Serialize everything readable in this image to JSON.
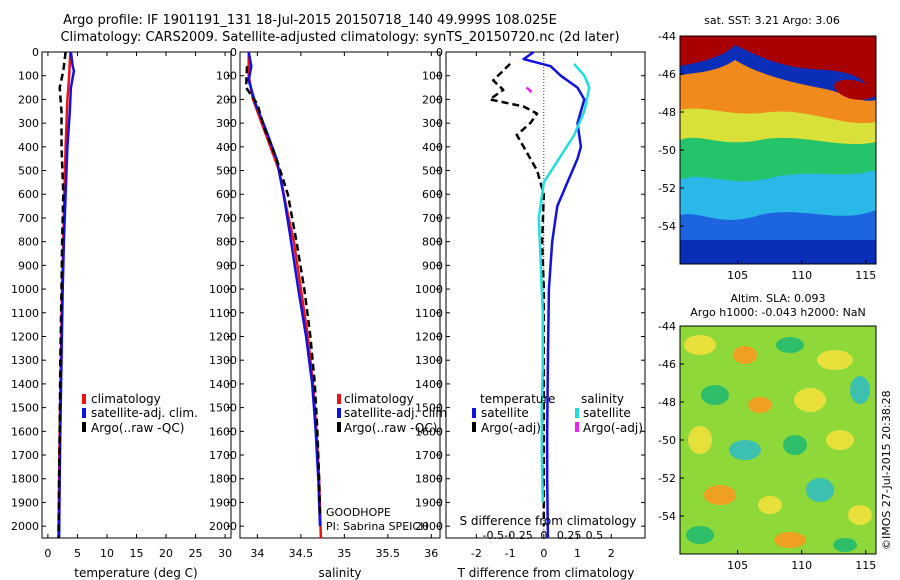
{
  "header": {
    "title_line1": "Argo profile: IF 1901191_131 18-Jul-2015 20150718_140 49.999S 108.025E",
    "title_line2": "Climatology: CARS2009. Satellite-adjusted climatology: synTS_20150720.nc (2d later)"
  },
  "colors": {
    "climatology": "#ee1111",
    "satellite": "#1111dd",
    "argo": "#000000",
    "satellite_s": "#22dddd",
    "argo_s": "#ee22ee"
  },
  "chart_data": [
    {
      "type": "line",
      "name": "temperature-panel",
      "xlabel": "temperature (deg C)",
      "xlim": [
        -1,
        31
      ],
      "xticks": [
        0,
        5,
        10,
        15,
        20,
        25,
        30
      ],
      "xtick_labels": [
        "0",
        "5",
        "10",
        "15",
        "20",
        "25",
        "30"
      ],
      "ylim": [
        0,
        2050
      ],
      "yticks": [
        0,
        100,
        200,
        300,
        400,
        500,
        600,
        700,
        800,
        900,
        1000,
        1100,
        1200,
        1300,
        1400,
        1500,
        1600,
        1700,
        1800,
        1900,
        2000
      ],
      "ytick_labels": [
        "0",
        "100",
        "200",
        "300",
        "400",
        "500",
        "600",
        "700",
        "800",
        "900",
        "1000",
        "1100",
        "1200",
        "1300",
        "1400",
        "1500",
        "1600",
        "1700",
        "1800",
        "1900",
        "2000"
      ],
      "legend": [
        "climatology",
        "satellite-adj. clim.",
        "Argo(..raw -QC)"
      ],
      "series": [
        {
          "name": "climatology",
          "style": "solid",
          "color_key": "climatology",
          "points": [
            [
              3.8,
              0
            ],
            [
              3.6,
              100
            ],
            [
              3.3,
              200
            ],
            [
              3.0,
              400
            ],
            [
              2.8,
              600
            ],
            [
              2.6,
              800
            ],
            [
              2.4,
              1000
            ],
            [
              2.2,
              1300
            ],
            [
              2.0,
              1600
            ],
            [
              1.9,
              1800
            ],
            [
              1.8,
              2050
            ]
          ]
        },
        {
          "name": "satellite-adj. clim.",
          "style": "solid",
          "color_key": "satellite",
          "points": [
            [
              3.9,
              0
            ],
            [
              4.2,
              60
            ],
            [
              4.4,
              80
            ],
            [
              3.9,
              150
            ],
            [
              3.7,
              250
            ],
            [
              3.3,
              400
            ],
            [
              3.0,
              600
            ],
            [
              2.7,
              800
            ],
            [
              2.5,
              1000
            ],
            [
              2.3,
              1300
            ],
            [
              2.1,
              1600
            ],
            [
              2.0,
              1800
            ],
            [
              1.9,
              2050
            ]
          ]
        },
        {
          "name": "Argo(..raw -QC)",
          "style": "dashed",
          "color_key": "argo",
          "points": [
            [
              3.0,
              0
            ],
            [
              2.6,
              80
            ],
            [
              2.0,
              150
            ],
            [
              2.3,
              250
            ],
            [
              2.3,
              400
            ],
            [
              2.6,
              600
            ],
            [
              2.4,
              800
            ],
            [
              2.3,
              1000
            ],
            [
              2.1,
              1300
            ],
            [
              2.0,
              1600
            ],
            [
              1.9,
              1800
            ],
            [
              1.8,
              2050
            ]
          ]
        }
      ]
    },
    {
      "type": "line",
      "name": "salinity-panel",
      "xlabel": "salinity",
      "xlim": [
        33.8,
        36.1
      ],
      "xticks": [
        34,
        34.5,
        35,
        35.5,
        36
      ],
      "xtick_labels": [
        "34",
        "34.5",
        "35",
        "35.5",
        "36"
      ],
      "ylim": [
        0,
        2050
      ],
      "yticks": [
        0,
        100,
        200,
        300,
        400,
        500,
        600,
        700,
        800,
        900,
        1000,
        1100,
        1200,
        1300,
        1400,
        1500,
        1600,
        1700,
        1800,
        1900,
        2000
      ],
      "legend": [
        "climatology",
        "satellite-adj. clim.",
        "Argo(..raw -QC)"
      ],
      "annotation": [
        "GOODHOPE",
        "PI: Sabrina SPEICH"
      ],
      "series": [
        {
          "name": "climatology",
          "style": "solid",
          "color_key": "climatology",
          "points": [
            [
              33.9,
              0
            ],
            [
              33.9,
              100
            ],
            [
              33.95,
              200
            ],
            [
              34.05,
              300
            ],
            [
              34.15,
              400
            ],
            [
              34.25,
              500
            ],
            [
              34.33,
              650
            ],
            [
              34.42,
              800
            ],
            [
              34.5,
              1000
            ],
            [
              34.58,
              1200
            ],
            [
              34.64,
              1400
            ],
            [
              34.68,
              1600
            ],
            [
              34.71,
              1800
            ],
            [
              34.73,
              2050
            ]
          ]
        },
        {
          "name": "satellite-adj. clim.",
          "style": "solid",
          "color_key": "satellite",
          "points": [
            [
              33.9,
              0
            ],
            [
              33.93,
              60
            ],
            [
              33.9,
              120
            ],
            [
              33.98,
              220
            ],
            [
              34.1,
              330
            ],
            [
              34.22,
              450
            ],
            [
              34.3,
              600
            ],
            [
              34.38,
              780
            ],
            [
              34.47,
              1000
            ],
            [
              34.56,
              1200
            ],
            [
              34.63,
              1400
            ],
            [
              34.67,
              1600
            ],
            [
              34.7,
              1800
            ],
            [
              34.72,
              2000
            ]
          ]
        },
        {
          "name": "Argo(..raw -QC)",
          "style": "dashed",
          "color_key": "argo",
          "points": [
            [
              33.88,
              60
            ],
            [
              33.87,
              150
            ],
            [
              34.0,
              220
            ],
            [
              34.08,
              320
            ],
            [
              34.22,
              450
            ],
            [
              34.35,
              600
            ],
            [
              34.45,
              800
            ],
            [
              34.54,
              1000
            ],
            [
              34.61,
              1200
            ],
            [
              34.66,
              1400
            ],
            [
              34.69,
              1600
            ],
            [
              34.71,
              1800
            ],
            [
              34.72,
              1950
            ]
          ]
        }
      ]
    },
    {
      "type": "line",
      "name": "difference-panel",
      "xlabel": "T difference from climatology",
      "x2label": "S difference from climatology",
      "xlim": [
        -2.9,
        3.0
      ],
      "xticks": [
        -2,
        -1,
        0,
        1,
        2
      ],
      "xtick_labels": [
        "-2",
        "-1",
        "0",
        "1",
        "2"
      ],
      "x2ticks": [
        -0.5,
        -0.25,
        0,
        0.25,
        0.5
      ],
      "x2tick_labels": [
        "-0.5",
        "-0.25",
        "0",
        "0.25",
        "0.5"
      ],
      "ylim": [
        0,
        2050
      ],
      "yticks": [
        0,
        100,
        200,
        300,
        400,
        500,
        600,
        700,
        800,
        900,
        1000,
        1100,
        1200,
        1300,
        1400,
        1500,
        1600,
        1700,
        1800,
        1900,
        2000
      ],
      "legend": {
        "temperature_title": "temperature",
        "salinity_title": "salinity",
        "temperature": [
          "satellite",
          "Argo(-adj)"
        ],
        "salinity": [
          "satellite",
          "Argo(-adj)"
        ]
      },
      "series": [
        {
          "name": "T satellite",
          "style": "solid",
          "color_key": "satellite",
          "points": [
            [
              -0.3,
              0
            ],
            [
              -0.6,
              30
            ],
            [
              0.2,
              60
            ],
            [
              0.5,
              100
            ],
            [
              1.0,
              150
            ],
            [
              1.2,
              200
            ],
            [
              1.0,
              300
            ],
            [
              1.1,
              400
            ],
            [
              1.0,
              450
            ],
            [
              0.7,
              550
            ],
            [
              0.4,
              650
            ],
            [
              0.25,
              800
            ],
            [
              0.15,
              1000
            ],
            [
              0.12,
              1300
            ],
            [
              0.1,
              1600
            ],
            [
              0.1,
              1800
            ],
            [
              0.12,
              2050
            ]
          ]
        },
        {
          "name": "T Argo(-adj)",
          "style": "dashed",
          "color_key": "argo",
          "points": [
            [
              -1.0,
              50
            ],
            [
              -1.5,
              120
            ],
            [
              -1.2,
              160
            ],
            [
              -1.6,
              200
            ],
            [
              -0.6,
              230
            ],
            [
              -0.2,
              260
            ],
            [
              -0.4,
              300
            ],
            [
              -0.8,
              350
            ],
            [
              -0.6,
              400
            ],
            [
              -0.2,
              500
            ],
            [
              0.0,
              600
            ],
            [
              -0.05,
              800
            ],
            [
              0.0,
              1000
            ],
            [
              0.0,
              1500
            ],
            [
              0.0,
              2000
            ]
          ]
        },
        {
          "name": "S satellite",
          "style": "solid",
          "color_key": "satellite_s",
          "points": [
            [
              0.3,
              50
            ],
            [
              0.4,
              100
            ],
            [
              0.45,
              150
            ],
            [
              0.4,
              250
            ],
            [
              0.3,
              350
            ],
            [
              0.15,
              450
            ],
            [
              0.0,
              550
            ],
            [
              -0.05,
              700
            ],
            [
              -0.03,
              900
            ],
            [
              -0.01,
              1100
            ],
            [
              -0.01,
              1300
            ],
            [
              -0.02,
              1500
            ],
            [
              -0.02,
              1700
            ],
            [
              -0.01,
              1900
            ]
          ]
        },
        {
          "name": "S Argo(-adj)",
          "style": "dashed",
          "color_key": "argo_s",
          "points": [
            [
              -0.17,
              150
            ],
            [
              -0.13,
              165
            ],
            [
              -0.15,
              180
            ]
          ]
        }
      ]
    },
    {
      "type": "heatmap",
      "name": "sst-map",
      "title": "sat. SST: 3.21 Argo: 3.06",
      "xlim": [
        100.5,
        115.8
      ],
      "ylim": [
        -56,
        -44
      ],
      "xticks": [
        105,
        110,
        115
      ],
      "xtick_labels": [
        "105",
        "110",
        "115"
      ],
      "yticks": [
        -44,
        -46,
        -48,
        -50,
        -52,
        -54
      ],
      "ytick_labels": [
        "-44",
        "-46",
        "-48",
        "-50",
        "-52",
        "-54"
      ]
    },
    {
      "type": "heatmap",
      "name": "sla-map",
      "title_line1": "Altim. SLA: 0.093",
      "title_line2": "Argo h1000: -0.043 h2000: NaN",
      "xlim": [
        100.5,
        115.8
      ],
      "ylim": [
        -56,
        -44
      ],
      "xticks": [
        105,
        110,
        115
      ],
      "xtick_labels": [
        "105",
        "110",
        "115"
      ],
      "yticks": [
        -44,
        -46,
        -48,
        -50,
        -52,
        -54
      ],
      "ytick_labels": [
        "-44",
        "-46",
        "-48",
        "-50",
        "-52",
        "-54"
      ],
      "side_label": "©IMOS 27-Jul-2015 20:38:28"
    }
  ]
}
